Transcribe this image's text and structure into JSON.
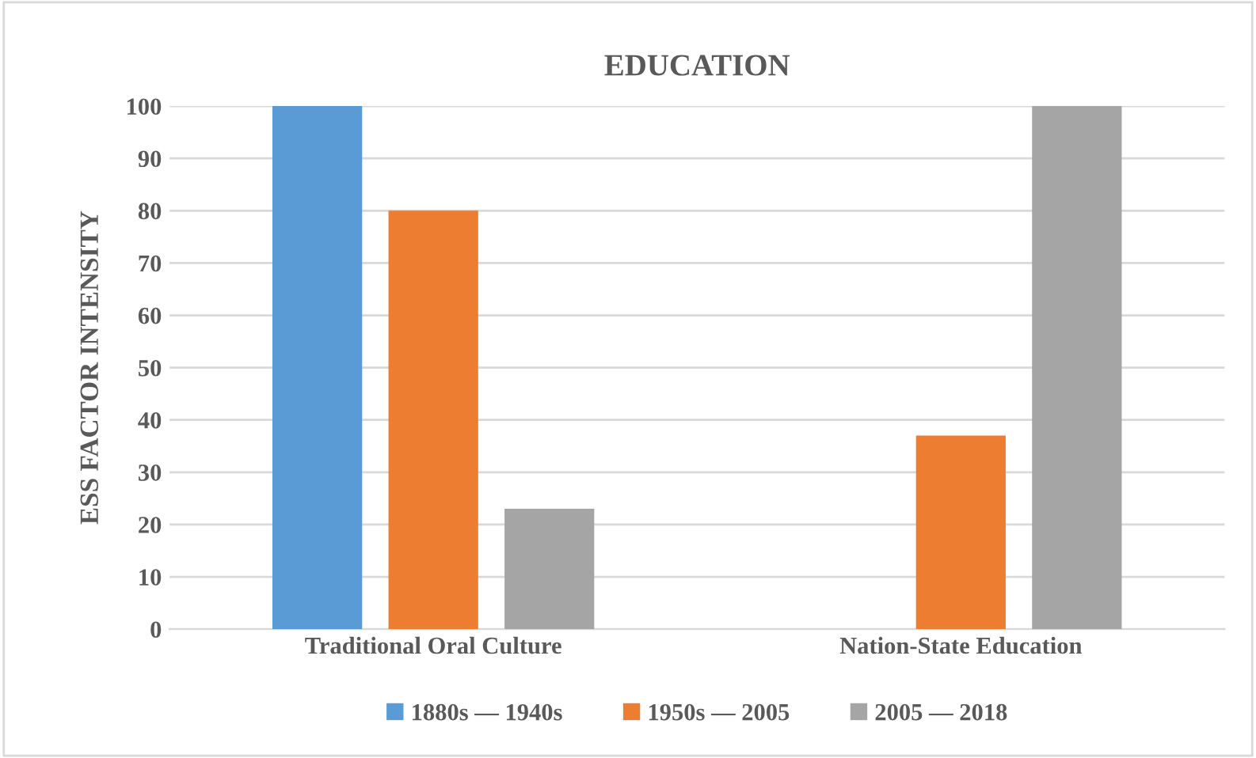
{
  "chart_data": {
    "type": "bar",
    "title": "EDUCATION",
    "ylabel": "ESS FACTOR INTENSITY",
    "categories": [
      "Traditional Oral Culture",
      "Nation-State Education"
    ],
    "series": [
      {
        "name": "1880s — 1940s",
        "color": "#5b9bd5",
        "values": [
          100,
          0
        ]
      },
      {
        "name": "1950s — 2005",
        "color": "#ed7d31",
        "values": [
          80,
          37
        ]
      },
      {
        "name": "2005 — 2018",
        "color": "#a5a5a5",
        "values": [
          23,
          100
        ]
      }
    ],
    "ylim": [
      0,
      100
    ],
    "yticks": [
      0,
      10,
      20,
      30,
      40,
      50,
      60,
      70,
      80,
      90,
      100
    ],
    "grid": "y",
    "legend": "bottom"
  }
}
